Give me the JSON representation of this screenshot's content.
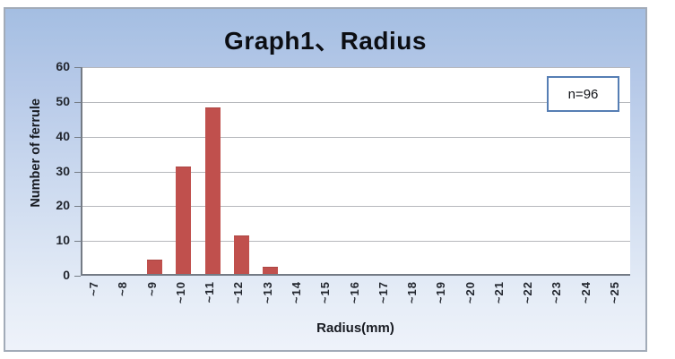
{
  "chart_data": {
    "type": "bar",
    "title": "Graph1、Radius",
    "categories": [
      "~7",
      "~8",
      "~9",
      "~10",
      "~11",
      "~12",
      "~13",
      "~14",
      "~15",
      "~16",
      "~17",
      "~18",
      "~19",
      "~20",
      "~21",
      "~22",
      "~23",
      "~24",
      "~25"
    ],
    "values": [
      0,
      0,
      4,
      31,
      48,
      11,
      2,
      0,
      0,
      0,
      0,
      0,
      0,
      0,
      0,
      0,
      0,
      0,
      0
    ],
    "xlabel": "Radius(mm)",
    "ylabel": "Number of ferrule",
    "ylim": [
      0,
      60
    ],
    "ytick_step": 10,
    "grid": true,
    "annotation": "n=96",
    "bar_color": "#c0504d",
    "sample_total": 96
  }
}
